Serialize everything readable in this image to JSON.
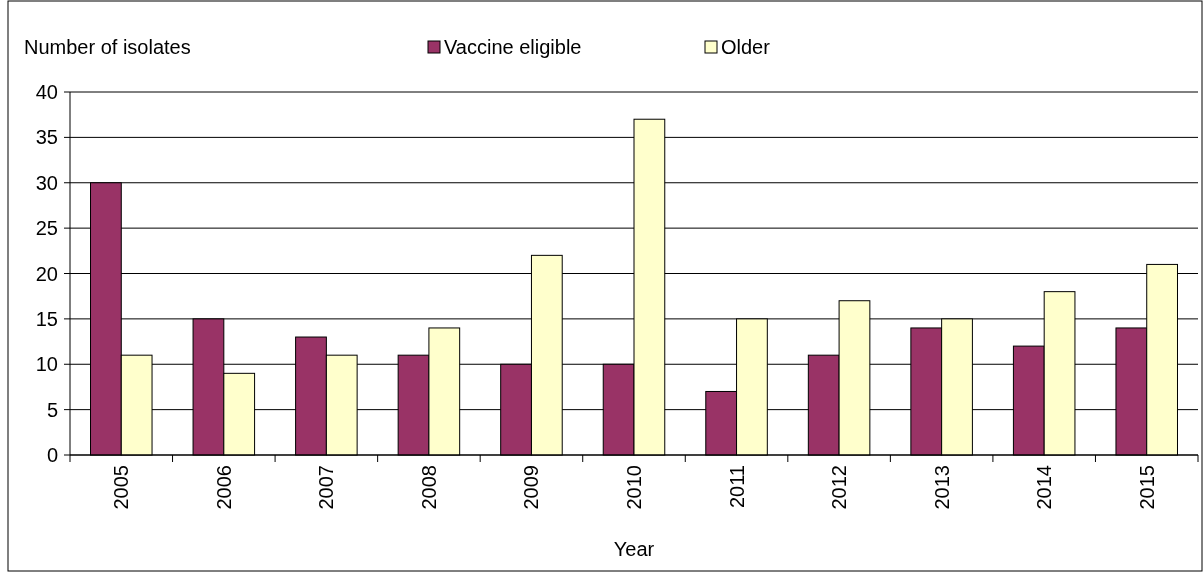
{
  "chart_data": {
    "type": "bar",
    "ylabel": "Number of isolates",
    "xlabel": "Year",
    "categories": [
      "2005",
      "2006",
      "2007",
      "2008",
      "2009",
      "2010",
      "2011",
      "2012",
      "2013",
      "2014",
      "2015"
    ],
    "series": [
      {
        "name": "Vaccine eligible",
        "color": "#993366",
        "values": [
          30,
          15,
          13,
          11,
          10,
          10,
          7,
          11,
          14,
          12,
          14
        ]
      },
      {
        "name": "Older",
        "color": "#ffffcc",
        "values": [
          11,
          9,
          11,
          14,
          22,
          37,
          15,
          17,
          15,
          18,
          21
        ]
      }
    ],
    "ylim": [
      0,
      40
    ],
    "yticks": [
      0,
      5,
      10,
      15,
      20,
      25,
      30,
      35,
      40
    ],
    "grid": "y",
    "legend": "top"
  }
}
